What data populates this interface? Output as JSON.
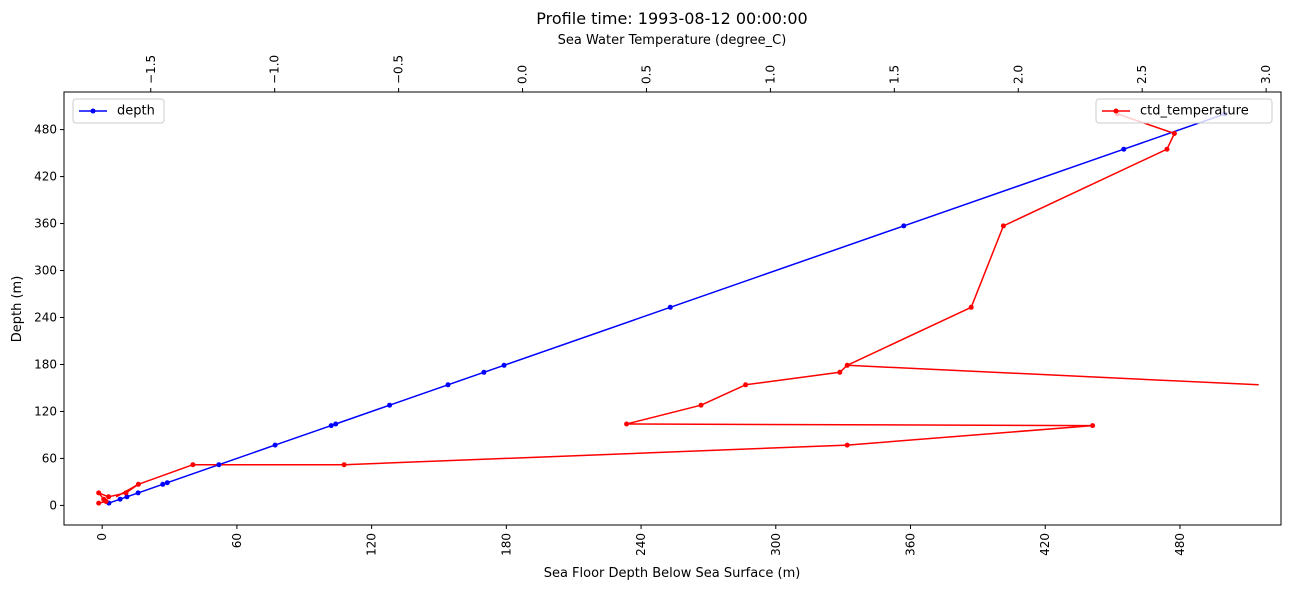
{
  "chart_data": {
    "type": "line",
    "title": "Profile time: 1993-08-12 00:00:00",
    "x_bottom": {
      "label": "Sea Floor Depth Below Sea Surface (m)",
      "range": [
        -17,
        525
      ],
      "ticks": [
        0,
        60,
        120,
        180,
        240,
        300,
        360,
        420,
        480
      ],
      "tick_labels": [
        "0",
        "60",
        "120",
        "180",
        "240",
        "300",
        "360",
        "420",
        "480"
      ],
      "tick_rotation": "vertical"
    },
    "x_top": {
      "label": "Sea Water Temperature (degree_C)",
      "range": [
        -1.85,
        3.06
      ],
      "ticks": [
        -1.5,
        -1.0,
        -0.5,
        0.0,
        0.5,
        1.0,
        1.5,
        2.0,
        2.5,
        3.0
      ],
      "tick_labels": [
        "−1.5",
        "−1.0",
        "−0.5",
        "0.0",
        "0.5",
        "1.0",
        "1.5",
        "2.0",
        "2.5",
        "3.0"
      ],
      "tick_rotation": "vertical"
    },
    "y": {
      "label": "Depth (m)",
      "range": [
        -25,
        528
      ],
      "ticks": [
        0,
        60,
        120,
        180,
        240,
        300,
        360,
        420,
        480
      ],
      "tick_labels": [
        "0",
        "60",
        "120",
        "180",
        "240",
        "300",
        "360",
        "420",
        "480"
      ]
    },
    "series": [
      {
        "name": "depth",
        "axis": "bottom",
        "color": "#0000ff",
        "marker": "dot",
        "x": [
          3,
          8,
          11,
          16,
          27,
          29,
          52,
          77,
          102,
          104,
          128,
          154,
          170,
          179,
          253,
          357,
          455,
          500
        ],
        "y": [
          3,
          8,
          11,
          16,
          27,
          29,
          52,
          77,
          102,
          104,
          128,
          154,
          170,
          179,
          253,
          357,
          455,
          500
        ]
      },
      {
        "name": "ctd_temperature",
        "axis": "top",
        "color": "#ff0000",
        "marker": "dot",
        "x": [
          -1.71,
          -1.68,
          -1.69,
          -1.71,
          -1.67,
          -1.6,
          -1.55,
          -1.33,
          -0.72,
          1.31,
          2.3,
          0.42,
          0.72,
          0.9,
          1.28,
          1.31,
          1.81,
          1.94,
          2.6,
          2.63,
          2.4
        ],
        "y": [
          3,
          5,
          8,
          16,
          11,
          16,
          27,
          52,
          52,
          77,
          102,
          104,
          128,
          154,
          170,
          179,
          253,
          357,
          455,
          475,
          500
        ]
      }
    ],
    "extra_segments": [
      {
        "series": "ctd_temperature",
        "x": [
          2.97,
          1.31
        ],
        "y": [
          154,
          179
        ]
      },
      {
        "series": "ctd_temperature",
        "x": [
          -1.55,
          -1.64
        ],
        "y": [
          27,
          11
        ]
      }
    ],
    "legend": [
      {
        "label": "depth",
        "placement": "upper-left",
        "color": "#0000ff"
      },
      {
        "label": "ctd_temperature",
        "placement": "upper-right",
        "color": "#ff0000"
      }
    ],
    "grid": false
  }
}
